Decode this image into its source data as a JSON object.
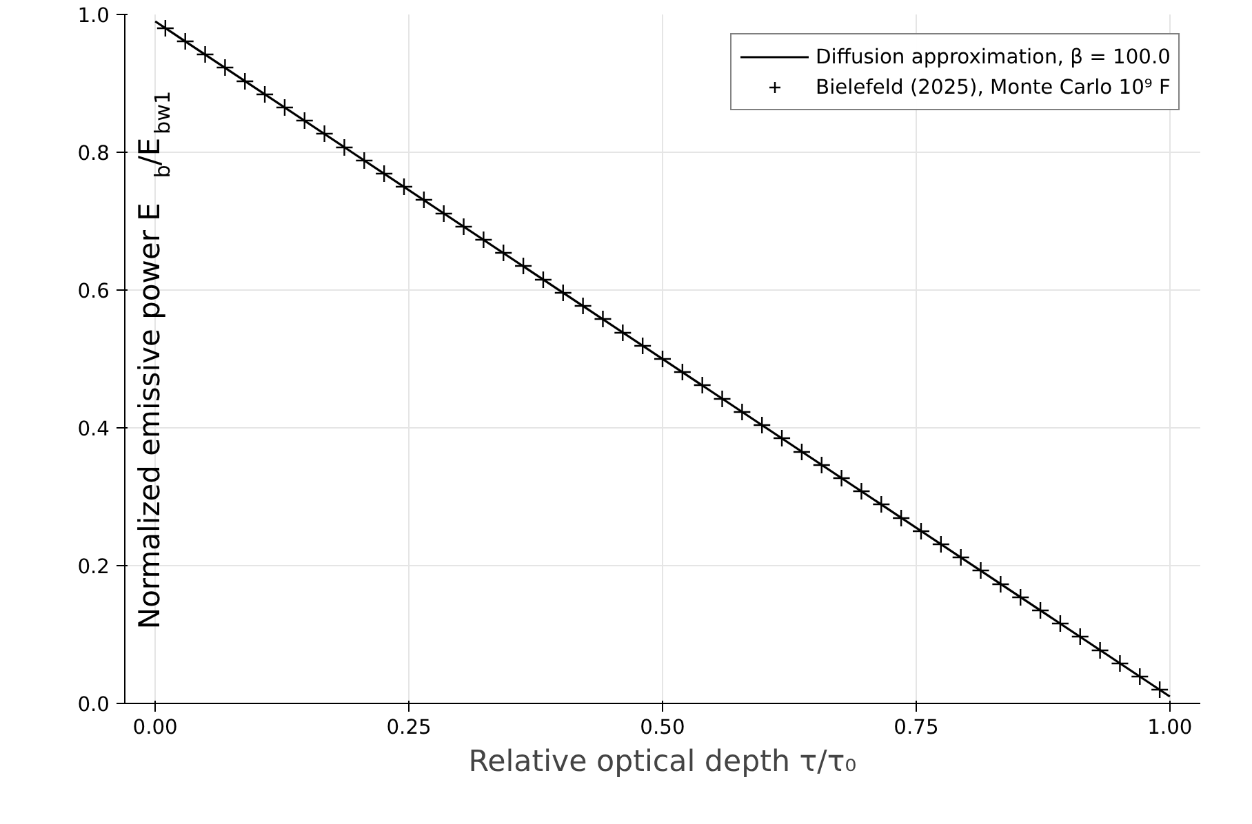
{
  "chart_data": {
    "type": "line",
    "xlabel": "Relative optical depth τ/τ₀",
    "ylabel": "Normalized emissive power E$_{b}$/E$_{bw1}$",
    "xlim": [
      -0.03,
      1.03
    ],
    "ylim": [
      0,
      1
    ],
    "xticks": [
      {
        "value": 0,
        "label": "0.00"
      },
      {
        "value": 0.25,
        "label": "0.25"
      },
      {
        "value": 0.5,
        "label": "0.50"
      },
      {
        "value": 0.75,
        "label": "0.75"
      },
      {
        "value": 1,
        "label": "1.00"
      }
    ],
    "yticks": [
      {
        "value": 0,
        "label": "0.0"
      },
      {
        "value": 0.2,
        "label": "0.2"
      },
      {
        "value": 0.4,
        "label": "0.4"
      },
      {
        "value": 0.6,
        "label": "0.6"
      },
      {
        "value": 0.8,
        "label": "0.8"
      },
      {
        "value": 1,
        "label": "1.0"
      }
    ],
    "grid": true,
    "legend": "top right",
    "series": [
      {
        "name": "Diffusion approximation, β = 100.0",
        "type": "line",
        "color": "#000000",
        "line_style": "solid",
        "marker": "none",
        "x": [
          0,
          1
        ],
        "values": [
          0.99,
          0.01
        ]
      },
      {
        "name": "Bielefeld (2025), Monte Carlo 10⁹ F",
        "type": "scatter",
        "color": "#000000",
        "marker": "cross",
        "x": [
          0.01,
          0.0296,
          0.0492,
          0.0688,
          0.0884,
          0.108,
          0.1276,
          0.1472,
          0.1668,
          0.1864,
          0.206,
          0.2256,
          0.2452,
          0.2648,
          0.2844,
          0.304,
          0.3236,
          0.3432,
          0.3628,
          0.3824,
          0.402,
          0.4216,
          0.4412,
          0.4608,
          0.4804,
          0.5,
          0.5196,
          0.5392,
          0.5588,
          0.5784,
          0.598,
          0.6176,
          0.6372,
          0.6568,
          0.6764,
          0.696,
          0.7156,
          0.7352,
          0.7548,
          0.7744,
          0.794,
          0.8136,
          0.8332,
          0.8528,
          0.8724,
          0.892,
          0.9116,
          0.9312,
          0.9508,
          0.9704,
          0.99
        ],
        "values": [
          0.98,
          0.961,
          0.942,
          0.923,
          0.903,
          0.884,
          0.865,
          0.846,
          0.827,
          0.807,
          0.788,
          0.769,
          0.75,
          0.731,
          0.711,
          0.692,
          0.673,
          0.654,
          0.635,
          0.615,
          0.596,
          0.577,
          0.558,
          0.538,
          0.519,
          0.5,
          0.481,
          0.462,
          0.442,
          0.423,
          0.404,
          0.385,
          0.365,
          0.346,
          0.327,
          0.308,
          0.289,
          0.269,
          0.25,
          0.231,
          0.212,
          0.193,
          0.173,
          0.154,
          0.135,
          0.116,
          0.097,
          0.077,
          0.058,
          0.039,
          0.02
        ]
      }
    ]
  }
}
